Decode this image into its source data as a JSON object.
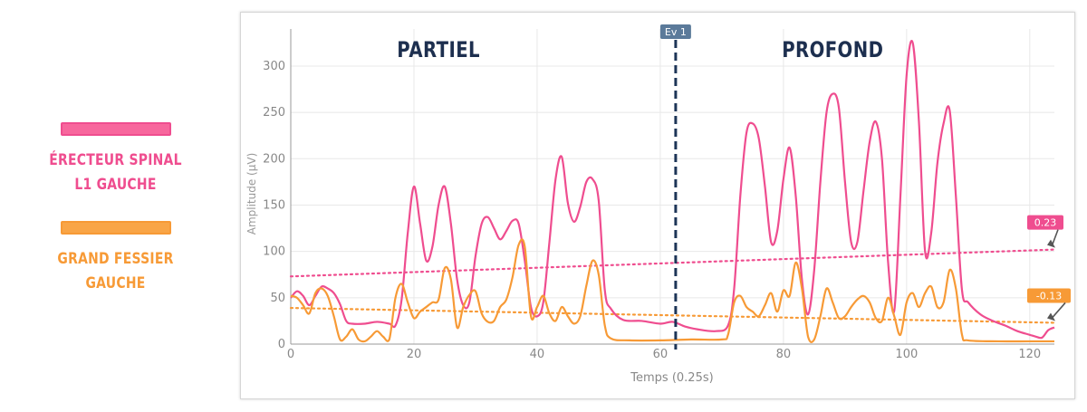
{
  "legend": [
    {
      "label_line1": "ÉRECTEUR SPINAL",
      "label_line2": "L1 GAUCHE",
      "color": "#ef4d8f",
      "fill": "#f7679d"
    },
    {
      "label_line1": "GRAND FESSIER",
      "label_line2": "GAUCHE",
      "color": "#f79a36",
      "fill": "#f9a546"
    }
  ],
  "colors": {
    "axis_text": "#888888",
    "grid": "#e8e8e8",
    "event_line": "#1d3557",
    "event_tag": "#5b7a9a",
    "title_text": "#1d2f4f"
  },
  "chart_data": {
    "type": "line",
    "xlabel": "Temps (0.25s)",
    "ylabel": "Amplitude (µV)",
    "xlim": [
      0,
      124
    ],
    "ylim": [
      0,
      340
    ],
    "x_ticks": [
      0,
      20,
      40,
      60,
      80,
      100,
      120
    ],
    "y_ticks": [
      0,
      50,
      100,
      150,
      200,
      250,
      300
    ],
    "grid": true,
    "annotations": [
      {
        "text": "PARTIEL",
        "x": 24
      },
      {
        "text": "PROFOND",
        "x": 88
      }
    ],
    "event": {
      "label": "Ev 1",
      "x": 62.5
    },
    "series": [
      {
        "name": "ÉRECTEUR SPINAL L1 GAUCHE",
        "color": "#ef4d8f",
        "points": [
          [
            0,
            50
          ],
          [
            1,
            57
          ],
          [
            2,
            52
          ],
          [
            3,
            42
          ],
          [
            4,
            52
          ],
          [
            5,
            62
          ],
          [
            6,
            60
          ],
          [
            7,
            55
          ],
          [
            8,
            43
          ],
          [
            9,
            25
          ],
          [
            10,
            22
          ],
          [
            12,
            22
          ],
          [
            14,
            24
          ],
          [
            16,
            22
          ],
          [
            17,
            20
          ],
          [
            18,
            48
          ],
          [
            19,
            120
          ],
          [
            20,
            170
          ],
          [
            21,
            130
          ],
          [
            22,
            90
          ],
          [
            23,
            105
          ],
          [
            24,
            150
          ],
          [
            25,
            170
          ],
          [
            26,
            130
          ],
          [
            27,
            70
          ],
          [
            28,
            42
          ],
          [
            29,
            45
          ],
          [
            30,
            95
          ],
          [
            31,
            130
          ],
          [
            32,
            137
          ],
          [
            33,
            125
          ],
          [
            34,
            113
          ],
          [
            35,
            122
          ],
          [
            36,
            133
          ],
          [
            37,
            130
          ],
          [
            38,
            90
          ],
          [
            39,
            40
          ],
          [
            40,
            30
          ],
          [
            41,
            45
          ],
          [
            42,
            110
          ],
          [
            43,
            178
          ],
          [
            44,
            202
          ],
          [
            45,
            152
          ],
          [
            46,
            132
          ],
          [
            47,
            148
          ],
          [
            48,
            175
          ],
          [
            49,
            178
          ],
          [
            50,
            155
          ],
          [
            51,
            58
          ],
          [
            52,
            38
          ],
          [
            54,
            26
          ],
          [
            57,
            25
          ],
          [
            60,
            22
          ],
          [
            62,
            24
          ],
          [
            64,
            19
          ],
          [
            66,
            16
          ],
          [
            69,
            14
          ],
          [
            71,
            20
          ],
          [
            72,
            60
          ],
          [
            73,
            160
          ],
          [
            74,
            228
          ],
          [
            75,
            238
          ],
          [
            76,
            222
          ],
          [
            77,
            170
          ],
          [
            78,
            110
          ],
          [
            79,
            122
          ],
          [
            80,
            178
          ],
          [
            81,
            212
          ],
          [
            82,
            160
          ],
          [
            83,
            70
          ],
          [
            84,
            32
          ],
          [
            85,
            80
          ],
          [
            86,
            175
          ],
          [
            87,
            250
          ],
          [
            88,
            270
          ],
          [
            89,
            255
          ],
          [
            90,
            175
          ],
          [
            91,
            110
          ],
          [
            92,
            110
          ],
          [
            93,
            165
          ],
          [
            94,
            218
          ],
          [
            95,
            240
          ],
          [
            96,
            200
          ],
          [
            97,
            88
          ],
          [
            98,
            36
          ],
          [
            99,
            160
          ],
          [
            100,
            290
          ],
          [
            101,
            325
          ],
          [
            102,
            240
          ],
          [
            103,
            100
          ],
          [
            104,
            120
          ],
          [
            105,
            195
          ],
          [
            106,
            238
          ],
          [
            107,
            252
          ],
          [
            108,
            160
          ],
          [
            109,
            58
          ],
          [
            110,
            45
          ],
          [
            112,
            32
          ],
          [
            114,
            25
          ],
          [
            116,
            20
          ],
          [
            118,
            14
          ],
          [
            120,
            10
          ],
          [
            121,
            8
          ],
          [
            122,
            7
          ],
          [
            123,
            15
          ],
          [
            124,
            18
          ]
        ]
      },
      {
        "name": "GRAND FESSIER GAUCHE",
        "color": "#f79a36",
        "points": [
          [
            0,
            52
          ],
          [
            1,
            50
          ],
          [
            2,
            42
          ],
          [
            3,
            33
          ],
          [
            4,
            55
          ],
          [
            5,
            60
          ],
          [
            6,
            52
          ],
          [
            7,
            30
          ],
          [
            8,
            5
          ],
          [
            9,
            8
          ],
          [
            10,
            16
          ],
          [
            11,
            5
          ],
          [
            12,
            3
          ],
          [
            13,
            8
          ],
          [
            14,
            14
          ],
          [
            15,
            8
          ],
          [
            16,
            5
          ],
          [
            17,
            50
          ],
          [
            18,
            65
          ],
          [
            19,
            45
          ],
          [
            20,
            28
          ],
          [
            21,
            35
          ],
          [
            22,
            40
          ],
          [
            23,
            45
          ],
          [
            24,
            48
          ],
          [
            25,
            82
          ],
          [
            26,
            70
          ],
          [
            27,
            18
          ],
          [
            28,
            40
          ],
          [
            29,
            53
          ],
          [
            30,
            57
          ],
          [
            31,
            33
          ],
          [
            32,
            24
          ],
          [
            33,
            25
          ],
          [
            34,
            40
          ],
          [
            35,
            48
          ],
          [
            36,
            72
          ],
          [
            37,
            107
          ],
          [
            38,
            105
          ],
          [
            39,
            30
          ],
          [
            40,
            40
          ],
          [
            41,
            52
          ],
          [
            42,
            33
          ],
          [
            43,
            25
          ],
          [
            44,
            40
          ],
          [
            45,
            30
          ],
          [
            46,
            22
          ],
          [
            47,
            30
          ],
          [
            48,
            63
          ],
          [
            49,
            90
          ],
          [
            50,
            75
          ],
          [
            51,
            20
          ],
          [
            52,
            6
          ],
          [
            55,
            4
          ],
          [
            60,
            4
          ],
          [
            65,
            5
          ],
          [
            70,
            5
          ],
          [
            71,
            10
          ],
          [
            72,
            45
          ],
          [
            73,
            52
          ],
          [
            74,
            40
          ],
          [
            75,
            35
          ],
          [
            76,
            30
          ],
          [
            77,
            42
          ],
          [
            78,
            55
          ],
          [
            79,
            35
          ],
          [
            80,
            58
          ],
          [
            81,
            52
          ],
          [
            82,
            88
          ],
          [
            83,
            60
          ],
          [
            84,
            8
          ],
          [
            85,
            5
          ],
          [
            86,
            30
          ],
          [
            87,
            60
          ],
          [
            88,
            45
          ],
          [
            89,
            28
          ],
          [
            90,
            30
          ],
          [
            91,
            40
          ],
          [
            92,
            48
          ],
          [
            93,
            52
          ],
          [
            94,
            45
          ],
          [
            95,
            28
          ],
          [
            96,
            25
          ],
          [
            97,
            50
          ],
          [
            98,
            30
          ],
          [
            99,
            10
          ],
          [
            100,
            45
          ],
          [
            101,
            55
          ],
          [
            102,
            40
          ],
          [
            103,
            55
          ],
          [
            104,
            62
          ],
          [
            105,
            40
          ],
          [
            106,
            45
          ],
          [
            107,
            80
          ],
          [
            108,
            60
          ],
          [
            109,
            10
          ],
          [
            110,
            4
          ],
          [
            115,
            3
          ],
          [
            120,
            3
          ],
          [
            124,
            3
          ]
        ]
      }
    ],
    "trendlines": [
      {
        "series": "ÉRECTEUR SPINAL L1 GAUCHE",
        "label": "0.23",
        "color": "#ef4d8f",
        "from": [
          0,
          73
        ],
        "to": [
          124,
          102
        ]
      },
      {
        "series": "GRAND FESSIER GAUCHE",
        "label": "-0.13",
        "color": "#f79a36",
        "from": [
          0,
          39
        ],
        "to": [
          124,
          23
        ]
      }
    ]
  }
}
